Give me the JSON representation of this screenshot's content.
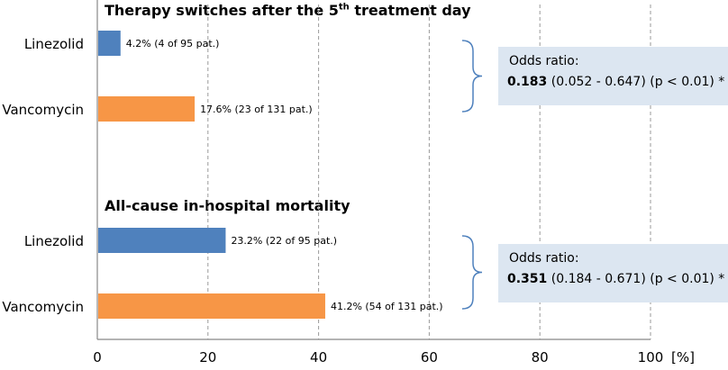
{
  "chart_data": [
    {
      "type": "bar",
      "orientation": "horizontal",
      "title": {
        "prefix": "Therapy switches after the 5",
        "sup": "th",
        "suffix": " treatment day"
      },
      "categories": [
        "Linezolid",
        "Vancomycin"
      ],
      "values": [
        4.2,
        17.6
      ],
      "data_labels": [
        "4.2% (4 of 95 pat.)",
        "17.6% (23 of 131 pat.)"
      ],
      "colors": [
        "#4f81bd",
        "#f79646"
      ],
      "annotation": {
        "label": "Odds ratio:",
        "value": "0.183",
        "detail": " (0.052 - 0.647) (p < 0.01) *"
      }
    },
    {
      "type": "bar",
      "orientation": "horizontal",
      "title": {
        "prefix": "All-cause in-hospital mortality",
        "sup": "",
        "suffix": ""
      },
      "categories": [
        "Linezolid",
        "Vancomycin"
      ],
      "values": [
        23.2,
        41.2
      ],
      "data_labels": [
        "23.2% (22 of 95 pat.)",
        "41.2% (54 of 131 pat.)"
      ],
      "colors": [
        "#4f81bd",
        "#f79646"
      ],
      "annotation": {
        "label": "Odds ratio:",
        "value": "0.351",
        "detail": " (0.184 - 0.671) (p < 0.01) *"
      }
    }
  ],
  "axis": {
    "xlim": [
      0,
      100
    ],
    "ticks": [
      0,
      20,
      40,
      60,
      80,
      100
    ],
    "unit": "[%]",
    "gridlines": "dashed"
  }
}
